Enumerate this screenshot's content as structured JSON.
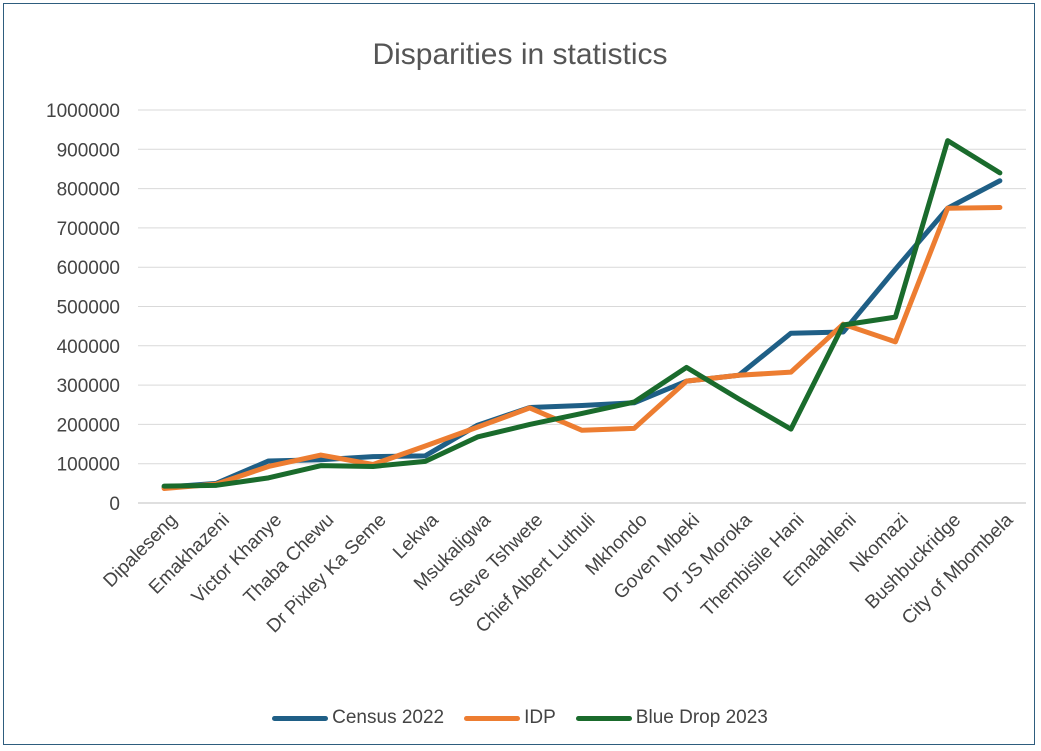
{
  "chart_data": {
    "type": "line",
    "title": "Disparities in statistics",
    "categories": [
      "Dipaleseng",
      "Emakhazeni",
      "Victor Khanye",
      "Thaba Chewu",
      "Dr Pixley Ka Seme",
      "Lekwa",
      "Msukaligwa",
      "Steve Tshwete",
      "Chief Albert Luthuli",
      "Mkhondo",
      "Goven Mbeki",
      "Dr JS Moroka",
      "Thembisile Hani",
      "Emalahleni",
      "Nkomazi",
      "Bushbuckridge",
      "City of Mbombela"
    ],
    "yticks": [
      "0",
      "100000",
      "200000",
      "300000",
      "400000",
      "500000",
      "600000",
      "700000",
      "800000",
      "900000",
      "1000000"
    ],
    "ylim": [
      0,
      1000000
    ],
    "grid": true,
    "legend_position": "bottom",
    "series": [
      {
        "name": "Census 2022",
        "color": "#1f5f86",
        "values": [
          40000,
          50000,
          107000,
          110000,
          118000,
          120000,
          198000,
          243000,
          248000,
          255000,
          310000,
          325000,
          432000,
          435000,
          595000,
          750000,
          820000
        ]
      },
      {
        "name": "IDP",
        "color": "#ed7d31",
        "values": [
          37000,
          48000,
          93000,
          122000,
          98000,
          145000,
          193000,
          242000,
          185000,
          190000,
          310000,
          325000,
          333000,
          455000,
          410000,
          750000,
          752000
        ]
      },
      {
        "name": "Blue Drop 2023",
        "color": "#1a6b2c",
        "values": [
          43000,
          45000,
          64000,
          95000,
          93000,
          106000,
          168000,
          200000,
          228000,
          257000,
          345000,
          265000,
          188000,
          453000,
          473000,
          922000,
          840000
        ]
      }
    ]
  }
}
